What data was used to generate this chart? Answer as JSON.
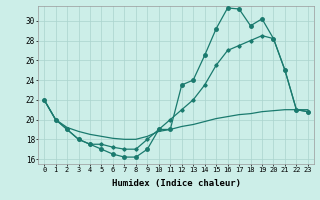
{
  "xlabel": "Humidex (Indice chaleur)",
  "bg_color": "#cceee8",
  "line_color": "#1a7a6e",
  "xlim": [
    -0.5,
    23.5
  ],
  "ylim": [
    15.5,
    31.5
  ],
  "xticks": [
    0,
    1,
    2,
    3,
    4,
    5,
    6,
    7,
    8,
    9,
    10,
    11,
    12,
    13,
    14,
    15,
    16,
    17,
    18,
    19,
    20,
    21,
    22,
    23
  ],
  "yticks": [
    16,
    18,
    20,
    22,
    24,
    26,
    28,
    30
  ],
  "line1_x": [
    0,
    1,
    2,
    3,
    4,
    5,
    6,
    7,
    8,
    9,
    10,
    11,
    12,
    13,
    14,
    15,
    16,
    17,
    18,
    19,
    20,
    21,
    22,
    23
  ],
  "line1_y": [
    22,
    20,
    19,
    18,
    17.5,
    17,
    16.5,
    16.2,
    16.2,
    17,
    19,
    19,
    23.5,
    24,
    26.5,
    29.2,
    31.3,
    31.2,
    29.5,
    30.2,
    28.2,
    25,
    21,
    20.8
  ],
  "line2_x": [
    0,
    1,
    2,
    3,
    4,
    5,
    6,
    7,
    8,
    9,
    10,
    11,
    12,
    13,
    14,
    15,
    16,
    17,
    18,
    19,
    20,
    21,
    22,
    23
  ],
  "line2_y": [
    22,
    20,
    19,
    18,
    17.5,
    17.5,
    17.2,
    17,
    17,
    18,
    19,
    20,
    21,
    22,
    23.5,
    25.5,
    27,
    27.5,
    28,
    28.5,
    28.2,
    25,
    21,
    20.8
  ],
  "line3_x": [
    0,
    1,
    2,
    3,
    4,
    5,
    6,
    7,
    8,
    9,
    10,
    11,
    12,
    13,
    14,
    15,
    16,
    17,
    18,
    19,
    20,
    21,
    22,
    23
  ],
  "line3_y": [
    22,
    20,
    19.2,
    18.8,
    18.5,
    18.3,
    18.1,
    18.0,
    18.0,
    18.3,
    18.8,
    19.0,
    19.3,
    19.5,
    19.8,
    20.1,
    20.3,
    20.5,
    20.6,
    20.8,
    20.9,
    21.0,
    21.0,
    21.0
  ]
}
